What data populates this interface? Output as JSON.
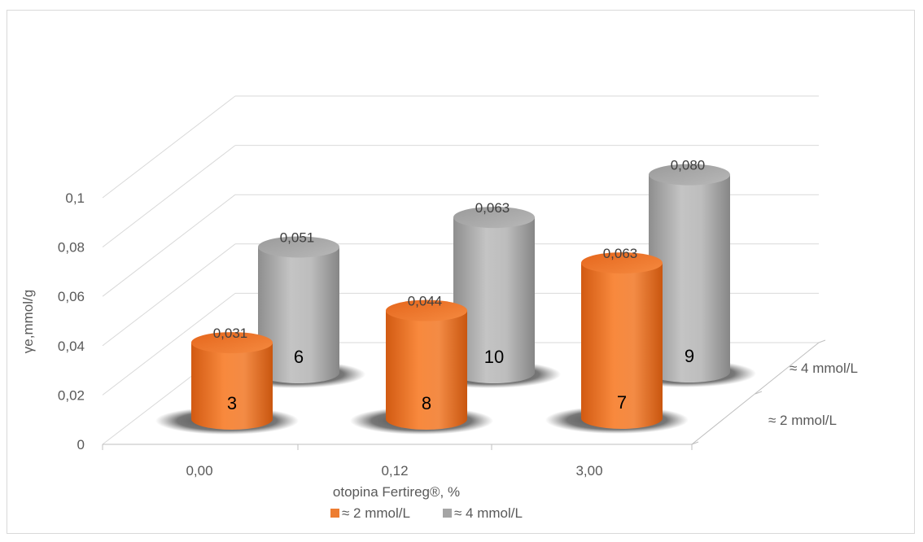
{
  "chart_data": {
    "type": "bar",
    "subtype": "3d-cylinder",
    "title": "",
    "xlabel": "otopina Fertireg®, %",
    "ylabel": "γe,mmol/g",
    "ylim": [
      0,
      0.1
    ],
    "y_ticks": [
      "0",
      "0,02",
      "0,04",
      "0,06",
      "0,08",
      "0,1"
    ],
    "categories": [
      "0,00",
      "0,12",
      "3,00"
    ],
    "depth_categories": [
      "≈ 2 mmol/L",
      "≈ 4 mmol/L"
    ],
    "series": [
      {
        "name": "≈ 2 mmol/L",
        "color": "#ed7d31",
        "values": [
          0.031,
          0.044,
          0.063
        ],
        "value_labels": [
          "0,031",
          "0,044",
          "0,063"
        ],
        "inner_labels": [
          "3",
          "8",
          "7"
        ]
      },
      {
        "name": "≈ 4 mmol/L",
        "color": "#a5a5a5",
        "values": [
          0.051,
          0.063,
          0.08
        ],
        "value_labels": [
          "0,051",
          "0,063",
          "0,080"
        ],
        "inner_labels": [
          "6",
          "10",
          "9"
        ]
      }
    ],
    "legend_position": "bottom",
    "grid": true
  }
}
